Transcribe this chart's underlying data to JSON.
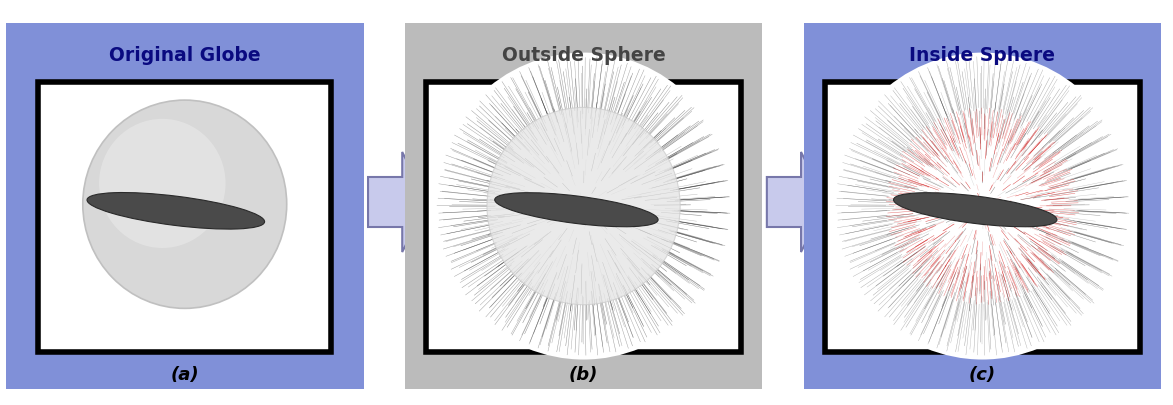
{
  "panel_a_title": "Original Globe",
  "panel_b_title": "Outside Sphere",
  "panel_c_title": "Inside Sphere",
  "caption_a": "(a)",
  "caption_b": "(b)",
  "caption_c": "(c)",
  "panel_a_bg": "#8090D8",
  "panel_b_bg": "#BBBBBB",
  "panel_c_bg": "#8090D8",
  "title_color_ac": "#0A0A80",
  "title_color_b": "#444444",
  "globe_color_a": "#DADADA",
  "globe_highlight": "#EEEEEE",
  "disk_color": "#555555",
  "arrow_face": "#C8CAEC",
  "arrow_edge": "#7777AA",
  "node_color_black": "#222222",
  "node_color_red": "#CC0000",
  "fig_width": 11.73,
  "fig_height": 4.06,
  "n_phi_lines": 60,
  "n_theta_lines": 80,
  "r_globe": 0.27,
  "r_outer": 0.41,
  "r_inner": 0.195
}
